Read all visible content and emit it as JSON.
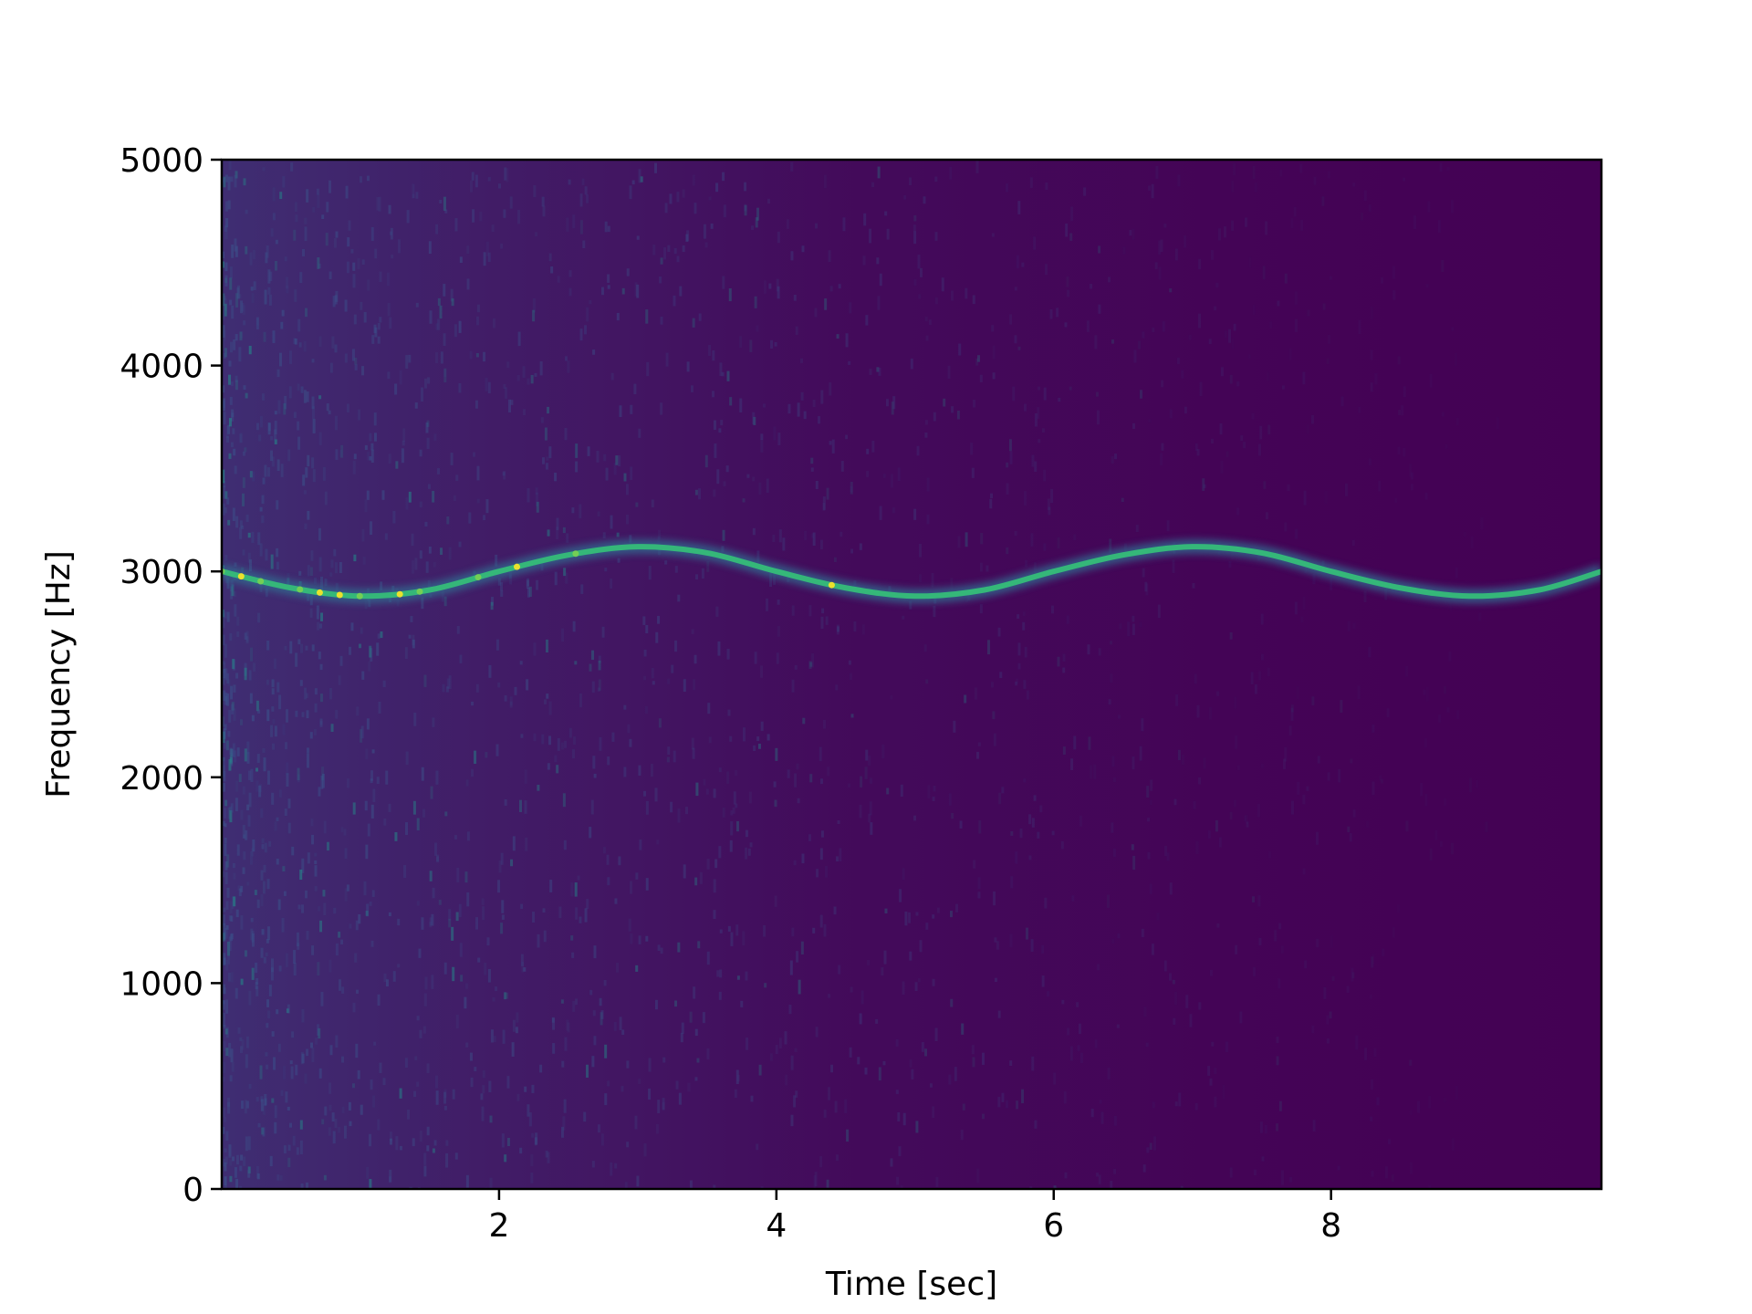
{
  "chart_data": {
    "type": "heatmap",
    "subtype": "spectrogram",
    "title": "",
    "xlabel": "Time [sec]",
    "ylabel": "Frequency [Hz]",
    "xlim": [
      0.0,
      9.95
    ],
    "ylim": [
      0,
      5000
    ],
    "xticks": [
      2,
      4,
      6,
      8
    ],
    "xtick_labels": [
      "2",
      "4",
      "6",
      "8"
    ],
    "yticks": [
      0,
      1000,
      2000,
      3000,
      4000,
      5000
    ],
    "ytick_labels": [
      "0",
      "1000",
      "2000",
      "3000",
      "4000",
      "5000"
    ],
    "colormap": "viridis",
    "background_color": "#440154",
    "noise_decay": "strong broadband noise at left, fading toward the right",
    "ridge": {
      "name": "",
      "description": "sinusoidally modulated tone",
      "x": [
        0.0,
        0.5,
        1.0,
        1.5,
        2.0,
        2.5,
        3.0,
        3.5,
        4.0,
        4.5,
        5.0,
        5.5,
        6.0,
        6.5,
        7.0,
        7.5,
        8.0,
        8.5,
        9.0,
        9.5,
        9.95
      ],
      "y": [
        3000,
        2920,
        2880,
        2910,
        3000,
        3080,
        3120,
        3090,
        3000,
        2920,
        2880,
        2910,
        3000,
        3080,
        3120,
        3090,
        3000,
        2920,
        2880,
        2910,
        3000
      ]
    },
    "colors": {
      "ridge_core": "#35b779",
      "ridge_edge": "#31688e",
      "ridge_hot": "#fde725"
    }
  }
}
